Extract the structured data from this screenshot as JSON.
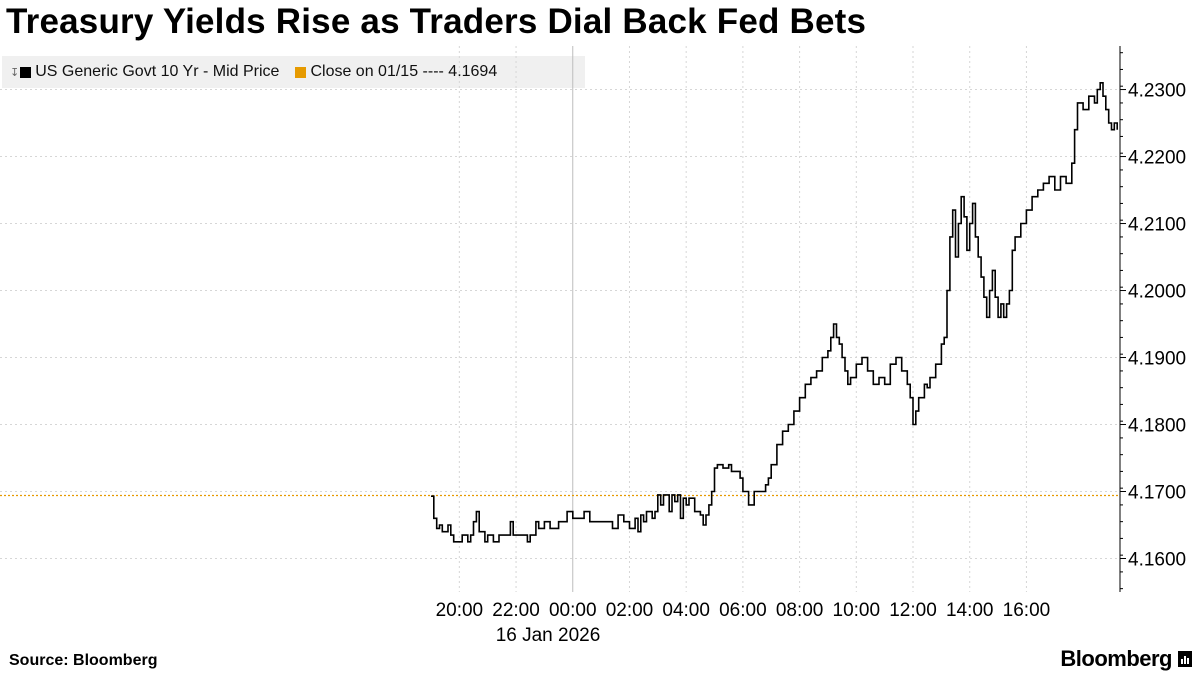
{
  "title": "Treasury Yields Rise as Traders Dial Back Fed Bets",
  "legend": {
    "series_label": "US Generic Govt 10 Yr - Mid Price",
    "series_color": "#000000",
    "reference_label": "Close on 01/15 ---- 4.1694",
    "reference_color": "#e69a00"
  },
  "source": "Source: Bloomberg",
  "brand": "Bloomberg",
  "chart_data": {
    "type": "line",
    "style": "step",
    "x_unit": "hours since 00:00, 16 Jan 2026 (negative = 15 Jan evening)",
    "xlim": [
      -20.2,
      19.3
    ],
    "x_ticks": [
      -4,
      -2,
      0,
      2,
      4,
      6,
      8,
      10,
      12,
      14,
      16
    ],
    "x_tick_labels": [
      "20:00",
      "22:00",
      "00:00",
      "02:00",
      "04:00",
      "06:00",
      "08:00",
      "10:00",
      "12:00",
      "14:00",
      "16:00"
    ],
    "x_date_label": "16 Jan 2026",
    "ylim": [
      4.155,
      4.2365
    ],
    "y_ticks": [
      4.16,
      4.17,
      4.18,
      4.19,
      4.2,
      4.21,
      4.22,
      4.23
    ],
    "y_tick_labels": [
      "4.1600",
      "4.1700",
      "4.1800",
      "4.1900",
      "4.2000",
      "4.2100",
      "4.2200",
      "4.2300"
    ],
    "grid": true,
    "legend_position": "top-left",
    "reference_line": {
      "value": 4.1694,
      "label": "Close on 01/15 ---- 4.1694"
    },
    "series": [
      {
        "name": "US Generic Govt 10 Yr - Mid Price",
        "color": "#000000",
        "points": [
          [
            -5.0,
            4.1693
          ],
          [
            -4.9,
            4.166
          ],
          [
            -4.8,
            4.1645
          ],
          [
            -4.7,
            4.165
          ],
          [
            -4.6,
            4.164
          ],
          [
            -4.4,
            4.165
          ],
          [
            -4.3,
            4.1635
          ],
          [
            -4.2,
            4.1625
          ],
          [
            -4.0,
            4.1625
          ],
          [
            -3.9,
            4.1635
          ],
          [
            -3.7,
            4.1625
          ],
          [
            -3.6,
            4.1635
          ],
          [
            -3.5,
            4.1655
          ],
          [
            -3.4,
            4.167
          ],
          [
            -3.3,
            4.164
          ],
          [
            -3.1,
            4.1625
          ],
          [
            -3.0,
            4.1635
          ],
          [
            -2.8,
            4.1625
          ],
          [
            -2.6,
            4.1635
          ],
          [
            -2.4,
            4.1635
          ],
          [
            -2.2,
            4.1655
          ],
          [
            -2.1,
            4.1635
          ],
          [
            -1.8,
            4.1635
          ],
          [
            -1.6,
            4.1625
          ],
          [
            -1.5,
            4.1635
          ],
          [
            -1.3,
            4.1655
          ],
          [
            -1.2,
            4.1645
          ],
          [
            -1.0,
            4.1655
          ],
          [
            -0.8,
            4.1645
          ],
          [
            -0.5,
            4.1655
          ],
          [
            -0.2,
            4.167
          ],
          [
            0.0,
            4.166
          ],
          [
            0.4,
            4.167
          ],
          [
            0.6,
            4.1655
          ],
          [
            1.0,
            4.1655
          ],
          [
            1.4,
            4.1645
          ],
          [
            1.6,
            4.1665
          ],
          [
            1.8,
            4.1655
          ],
          [
            2.0,
            4.1645
          ],
          [
            2.2,
            4.166
          ],
          [
            2.3,
            4.164
          ],
          [
            2.4,
            4.1665
          ],
          [
            2.5,
            4.1655
          ],
          [
            2.6,
            4.167
          ],
          [
            2.8,
            4.166
          ],
          [
            2.9,
            4.167
          ],
          [
            3.0,
            4.1695
          ],
          [
            3.1,
            4.168
          ],
          [
            3.2,
            4.1695
          ],
          [
            3.4,
            4.167
          ],
          [
            3.5,
            4.1695
          ],
          [
            3.6,
            4.1685
          ],
          [
            3.7,
            4.1695
          ],
          [
            3.8,
            4.166
          ],
          [
            3.9,
            4.169
          ],
          [
            4.0,
            4.168
          ],
          [
            4.1,
            4.169
          ],
          [
            4.3,
            4.167
          ],
          [
            4.5,
            4.1665
          ],
          [
            4.6,
            4.165
          ],
          [
            4.7,
            4.1665
          ],
          [
            4.8,
            4.168
          ],
          [
            4.9,
            4.17
          ],
          [
            5.0,
            4.1735
          ],
          [
            5.1,
            4.174
          ],
          [
            5.3,
            4.1735
          ],
          [
            5.5,
            4.174
          ],
          [
            5.6,
            4.173
          ],
          [
            5.8,
            4.173
          ],
          [
            5.9,
            4.172
          ],
          [
            6.0,
            4.17
          ],
          [
            6.2,
            4.168
          ],
          [
            6.4,
            4.17
          ],
          [
            6.7,
            4.17
          ],
          [
            6.8,
            4.171
          ],
          [
            6.9,
            4.172
          ],
          [
            7.0,
            4.174
          ],
          [
            7.2,
            4.177
          ],
          [
            7.4,
            4.179
          ],
          [
            7.6,
            4.18
          ],
          [
            7.8,
            4.182
          ],
          [
            8.0,
            4.184
          ],
          [
            8.2,
            4.186
          ],
          [
            8.4,
            4.187
          ],
          [
            8.6,
            4.188
          ],
          [
            8.8,
            4.19
          ],
          [
            9.0,
            4.191
          ],
          [
            9.1,
            4.193
          ],
          [
            9.2,
            4.195
          ],
          [
            9.3,
            4.193
          ],
          [
            9.4,
            4.192
          ],
          [
            9.5,
            4.19
          ],
          [
            9.6,
            4.188
          ],
          [
            9.7,
            4.186
          ],
          [
            9.8,
            4.187
          ],
          [
            10.0,
            4.189
          ],
          [
            10.2,
            4.19
          ],
          [
            10.4,
            4.188
          ],
          [
            10.6,
            4.186
          ],
          [
            10.8,
            4.187
          ],
          [
            11.0,
            4.186
          ],
          [
            11.2,
            4.189
          ],
          [
            11.4,
            4.19
          ],
          [
            11.6,
            4.188
          ],
          [
            11.8,
            4.186
          ],
          [
            11.9,
            4.184
          ],
          [
            12.0,
            4.18
          ],
          [
            12.1,
            4.182
          ],
          [
            12.2,
            4.184
          ],
          [
            12.4,
            4.186
          ],
          [
            12.5,
            4.1855
          ],
          [
            12.6,
            4.187
          ],
          [
            12.8,
            4.189
          ],
          [
            13.0,
            4.192
          ],
          [
            13.1,
            4.193
          ],
          [
            13.2,
            4.2
          ],
          [
            13.3,
            4.208
          ],
          [
            13.4,
            4.212
          ],
          [
            13.5,
            4.205
          ],
          [
            13.6,
            4.21
          ],
          [
            13.7,
            4.214
          ],
          [
            13.8,
            4.211
          ],
          [
            13.9,
            4.206
          ],
          [
            14.0,
            4.21
          ],
          [
            14.1,
            4.213
          ],
          [
            14.2,
            4.208
          ],
          [
            14.3,
            4.205
          ],
          [
            14.4,
            4.202
          ],
          [
            14.5,
            4.199
          ],
          [
            14.6,
            4.196
          ],
          [
            14.7,
            4.2
          ],
          [
            14.8,
            4.203
          ],
          [
            14.9,
            4.199
          ],
          [
            15.0,
            4.196
          ],
          [
            15.1,
            4.198
          ],
          [
            15.2,
            4.196
          ],
          [
            15.3,
            4.198
          ],
          [
            15.4,
            4.2
          ],
          [
            15.5,
            4.206
          ],
          [
            15.6,
            4.208
          ],
          [
            15.8,
            4.21
          ],
          [
            16.0,
            4.212
          ],
          [
            16.2,
            4.214
          ],
          [
            16.4,
            4.215
          ],
          [
            16.6,
            4.216
          ],
          [
            16.8,
            4.217
          ],
          [
            17.0,
            4.215
          ],
          [
            17.2,
            4.217
          ],
          [
            17.4,
            4.216
          ],
          [
            17.6,
            4.219
          ],
          [
            17.7,
            4.224
          ],
          [
            17.8,
            4.228
          ],
          [
            18.0,
            4.227
          ],
          [
            18.2,
            4.229
          ],
          [
            18.4,
            4.228
          ],
          [
            18.5,
            4.23
          ],
          [
            18.6,
            4.231
          ],
          [
            18.7,
            4.229
          ],
          [
            18.8,
            4.227
          ],
          [
            18.9,
            4.225
          ],
          [
            19.0,
            4.224
          ],
          [
            19.1,
            4.225
          ],
          [
            19.2,
            4.224
          ]
        ]
      }
    ]
  }
}
